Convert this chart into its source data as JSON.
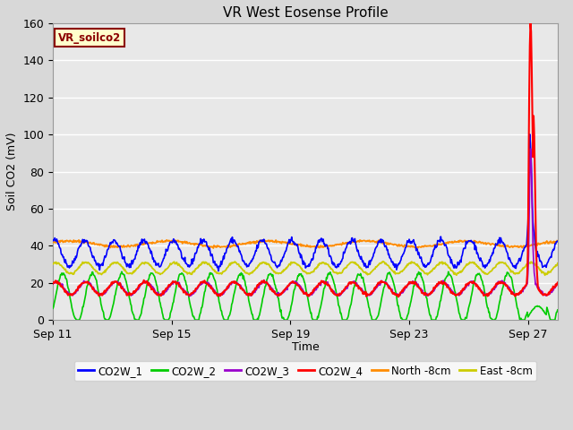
{
  "title": "VR West Eosense Profile",
  "ylabel": "Soil CO2 (mV)",
  "xlabel": "Time",
  "ylim": [
    0,
    160
  ],
  "annotation_text": "VR_soilco2",
  "annotation_color": "#8B0000",
  "annotation_bg": "#FFFFCC",
  "fig_bg": "#D8D8D8",
  "plot_bg": "#E8E8E8",
  "grid_color": "#FFFFFF",
  "series_colors": {
    "CO2W_1": "#0000FF",
    "CO2W_2": "#00CC00",
    "CO2W_3": "#9900CC",
    "CO2W_4": "#FF0000",
    "North_8cm": "#FF8C00",
    "East_8cm": "#CCCC00"
  },
  "x_tick_labels": [
    "Sep 11",
    "Sep 15",
    "Sep 19",
    "Sep 23",
    "Sep 27"
  ],
  "x_tick_positions": [
    0,
    4,
    8,
    12,
    16
  ],
  "total_days": 17
}
